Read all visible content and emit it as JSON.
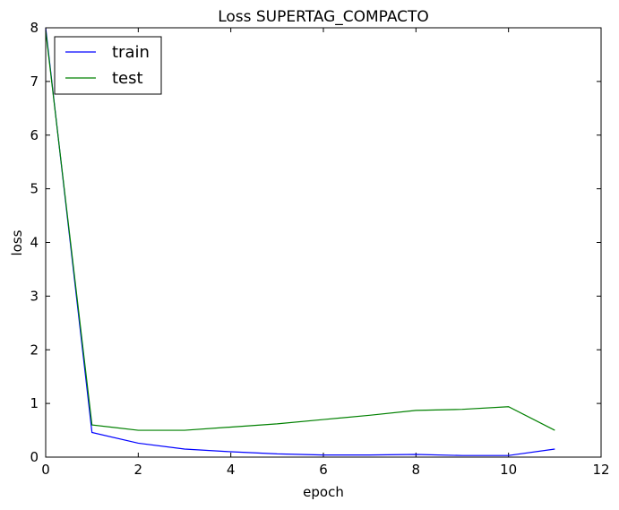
{
  "chart_data": {
    "type": "line",
    "title": "Loss SUPERTAG_COMPACTO",
    "xlabel": "epoch",
    "ylabel": "loss",
    "xlim": [
      0,
      12
    ],
    "ylim": [
      0,
      8
    ],
    "xticks": [
      "0",
      "2",
      "4",
      "6",
      "8",
      "10",
      "12"
    ],
    "yticks": [
      "0",
      "1",
      "2",
      "3",
      "4",
      "5",
      "6",
      "7",
      "8"
    ],
    "grid": false,
    "legend_position": "top-left",
    "x": [
      0,
      1,
      2,
      3,
      4,
      5,
      6,
      7,
      8,
      9,
      10,
      11
    ],
    "series": [
      {
        "name": "train",
        "color": "#0000ff",
        "values": [
          8.0,
          0.46,
          0.26,
          0.15,
          0.1,
          0.06,
          0.04,
          0.04,
          0.05,
          0.03,
          0.03,
          0.15
        ]
      },
      {
        "name": "test",
        "color": "#008000",
        "values": [
          7.95,
          0.6,
          0.5,
          0.5,
          0.56,
          0.62,
          0.7,
          0.78,
          0.87,
          0.89,
          0.94,
          0.5
        ]
      }
    ]
  }
}
